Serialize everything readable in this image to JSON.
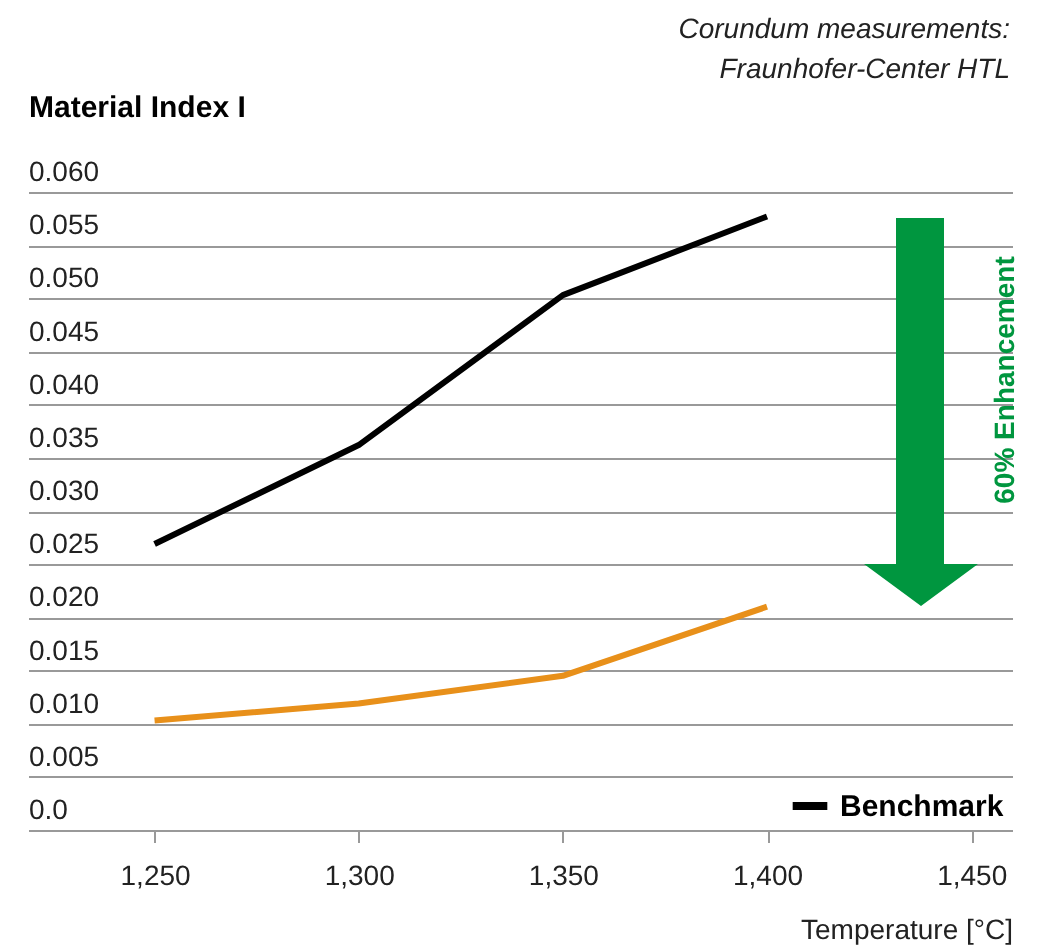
{
  "chart_data": {
    "type": "line",
    "ylabel": "Material Index I",
    "xlabel": "Temperature [°C]",
    "annotations": [
      "Corundum measurements:",
      "Fraunhofer-Center HTL",
      "60% Enhancement"
    ],
    "x": [
      1250,
      1300,
      1350,
      1400
    ],
    "series": [
      {
        "name": "Benchmark",
        "color": "#000000",
        "values": [
          0.0269,
          0.0362,
          0.0503,
          0.0577
        ]
      },
      {
        "color": "#e8901a",
        "values": [
          0.0103,
          0.0119,
          0.0145,
          0.021
        ]
      }
    ],
    "xlim": [
      1219,
      1460
    ],
    "xticks": [
      {
        "value": 1250,
        "label": "1,250"
      },
      {
        "value": 1300,
        "label": "1,300"
      },
      {
        "value": 1350,
        "label": "1,350"
      },
      {
        "value": 1400,
        "label": "1,400"
      },
      {
        "value": 1450,
        "label": "1,450"
      }
    ],
    "ylim": [
      0,
      0.06
    ],
    "yticks": [
      {
        "value": 0,
        "label": "0.0"
      },
      {
        "value": 0.005,
        "label": "0.005"
      },
      {
        "value": 0.01,
        "label": "0.010"
      },
      {
        "value": 0.015,
        "label": "0.015"
      },
      {
        "value": 0.02,
        "label": "0.020"
      },
      {
        "value": 0.025,
        "label": "0.025"
      },
      {
        "value": 0.03,
        "label": "0.030"
      },
      {
        "value": 0.035,
        "label": "0.035"
      },
      {
        "value": 0.04,
        "label": "0.040"
      },
      {
        "value": 0.045,
        "label": "0.045"
      },
      {
        "value": 0.05,
        "label": "0.050"
      },
      {
        "value": 0.055,
        "label": "0.055"
      },
      {
        "value": 0.06,
        "label": "0.060"
      }
    ],
    "grid": "y",
    "legend": "bottom right",
    "marker": "none",
    "line_style": "solid"
  }
}
